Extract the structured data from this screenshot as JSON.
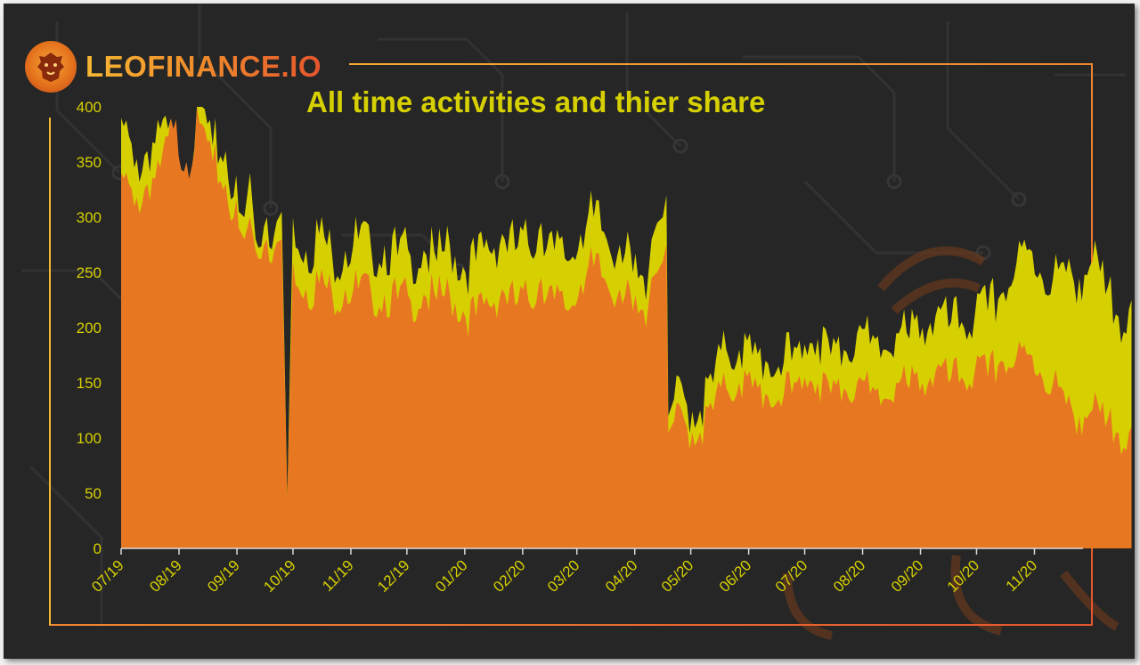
{
  "brand": {
    "name": "LEOFINANCE.IO",
    "logo_icon": "lion-head-icon"
  },
  "colors": {
    "background": "#262626",
    "series_total": "#d6d000",
    "series_share": "#e87722",
    "text": "#d6d000",
    "frame_gradient_start": "#f7b733",
    "frame_gradient_end": "#e4552e"
  },
  "chart_data": {
    "type": "area",
    "title": "All time activities and thier share",
    "xlabel": "",
    "ylabel": "",
    "ylim": [
      0,
      400
    ],
    "yticks": [
      "0",
      "50",
      "100",
      "150",
      "200",
      "250",
      "300",
      "350",
      "400"
    ],
    "xticks": [
      "07/19",
      "08/19",
      "09/19",
      "10/19",
      "11/19",
      "12/19",
      "01/20",
      "02/20",
      "03/20",
      "04/20",
      "05/20",
      "06/20",
      "07/20",
      "08/20",
      "09/20",
      "10/20",
      "11/20"
    ],
    "x_start": "2019-07-01",
    "x_end": "2020-11-27",
    "grid": false,
    "legend": "none",
    "series": [
      {
        "key": "total",
        "color": "#d6d000",
        "values": [
          [
            0,
            390
          ],
          [
            7,
            345
          ],
          [
            14,
            360
          ],
          [
            21,
            380
          ],
          [
            28,
            365
          ],
          [
            35,
            345
          ],
          [
            42,
            400
          ],
          [
            49,
            365
          ],
          [
            56,
            360
          ],
          [
            63,
            305
          ],
          [
            66,
            300
          ],
          [
            69,
            340
          ],
          [
            72,
            280
          ],
          [
            78,
            300
          ],
          [
            82,
            285
          ],
          [
            86,
            305
          ],
          [
            89,
            45
          ],
          [
            92,
            300
          ],
          [
            99,
            270
          ],
          [
            106,
            285
          ],
          [
            113,
            265
          ],
          [
            120,
            270
          ],
          [
            127,
            280
          ],
          [
            134,
            270
          ],
          [
            141,
            275
          ],
          [
            148,
            265
          ],
          [
            155,
            265
          ],
          [
            162,
            270
          ],
          [
            169,
            260
          ],
          [
            176,
            275
          ],
          [
            183,
            255
          ],
          [
            190,
            260
          ],
          [
            197,
            270
          ],
          [
            204,
            285
          ],
          [
            211,
            270
          ],
          [
            218,
            275
          ],
          [
            225,
            295
          ],
          [
            232,
            270
          ],
          [
            239,
            260
          ],
          [
            246,
            285
          ],
          [
            253,
            300
          ],
          [
            260,
            280
          ],
          [
            267,
            275
          ],
          [
            274,
            250
          ],
          [
            281,
            225
          ],
          [
            284,
            280
          ],
          [
            287,
            295
          ],
          [
            290,
            300
          ],
          [
            292,
            320
          ],
          [
            293,
            120
          ],
          [
            296,
            135
          ],
          [
            303,
            130
          ],
          [
            310,
            125
          ],
          [
            317,
            150
          ],
          [
            324,
            180
          ],
          [
            331,
            180
          ],
          [
            338,
            175
          ],
          [
            345,
            170
          ],
          [
            352,
            165
          ],
          [
            359,
            170
          ],
          [
            366,
            185
          ],
          [
            373,
            190
          ],
          [
            380,
            175
          ],
          [
            387,
            180
          ],
          [
            394,
            195
          ],
          [
            401,
            185
          ],
          [
            408,
            180
          ],
          [
            415,
            195
          ],
          [
            422,
            190
          ],
          [
            429,
            200
          ],
          [
            436,
            210
          ],
          [
            443,
            200
          ],
          [
            450,
            205
          ],
          [
            457,
            210
          ],
          [
            464,
            215
          ],
          [
            471,
            230
          ],
          [
            478,
            245
          ],
          [
            485,
            270
          ],
          [
            492,
            250
          ],
          [
            499,
            245
          ],
          [
            506,
            250
          ],
          [
            513,
            245
          ],
          [
            520,
            260
          ],
          [
            527,
            230
          ],
          [
            534,
            210
          ],
          [
            541,
            225
          ]
        ]
      },
      {
        "key": "share",
        "color": "#e87722",
        "values": [
          [
            0,
            340
          ],
          [
            7,
            310
          ],
          [
            14,
            330
          ],
          [
            21,
            345
          ],
          [
            28,
            380
          ],
          [
            35,
            350
          ],
          [
            42,
            385
          ],
          [
            49,
            350
          ],
          [
            56,
            330
          ],
          [
            63,
            290
          ],
          [
            66,
            280
          ],
          [
            69,
            300
          ],
          [
            72,
            270
          ],
          [
            78,
            280
          ],
          [
            82,
            270
          ],
          [
            86,
            280
          ],
          [
            89,
            45
          ],
          [
            92,
            260
          ],
          [
            99,
            235
          ],
          [
            106,
            240
          ],
          [
            113,
            230
          ],
          [
            120,
            235
          ],
          [
            127,
            235
          ],
          [
            134,
            230
          ],
          [
            141,
            230
          ],
          [
            148,
            225
          ],
          [
            155,
            225
          ],
          [
            162,
            230
          ],
          [
            169,
            225
          ],
          [
            176,
            230
          ],
          [
            183,
            215
          ],
          [
            190,
            210
          ],
          [
            197,
            220
          ],
          [
            204,
            235
          ],
          [
            211,
            220
          ],
          [
            218,
            225
          ],
          [
            225,
            245
          ],
          [
            232,
            225
          ],
          [
            239,
            215
          ],
          [
            246,
            240
          ],
          [
            253,
            255
          ],
          [
            260,
            240
          ],
          [
            267,
            235
          ],
          [
            274,
            215
          ],
          [
            281,
            200
          ],
          [
            284,
            245
          ],
          [
            287,
            250
          ],
          [
            290,
            260
          ],
          [
            292,
            275
          ],
          [
            293,
            105
          ],
          [
            296,
            115
          ],
          [
            303,
            110
          ],
          [
            310,
            105
          ],
          [
            317,
            125
          ],
          [
            324,
            145
          ],
          [
            331,
            150
          ],
          [
            338,
            145
          ],
          [
            345,
            140
          ],
          [
            352,
            135
          ],
          [
            359,
            140
          ],
          [
            366,
            155
          ],
          [
            373,
            150
          ],
          [
            380,
            140
          ],
          [
            387,
            145
          ],
          [
            394,
            150
          ],
          [
            401,
            140
          ],
          [
            408,
            135
          ],
          [
            415,
            150
          ],
          [
            422,
            145
          ],
          [
            429,
            150
          ],
          [
            436,
            160
          ],
          [
            443,
            150
          ],
          [
            450,
            155
          ],
          [
            457,
            160
          ],
          [
            464,
            155
          ],
          [
            471,
            170
          ],
          [
            478,
            165
          ],
          [
            485,
            175
          ],
          [
            492,
            160
          ],
          [
            499,
            150
          ],
          [
            506,
            130
          ],
          [
            513,
            120
          ],
          [
            520,
            125
          ],
          [
            527,
            110
          ],
          [
            534,
            105
          ],
          [
            541,
            110
          ]
        ]
      }
    ]
  }
}
